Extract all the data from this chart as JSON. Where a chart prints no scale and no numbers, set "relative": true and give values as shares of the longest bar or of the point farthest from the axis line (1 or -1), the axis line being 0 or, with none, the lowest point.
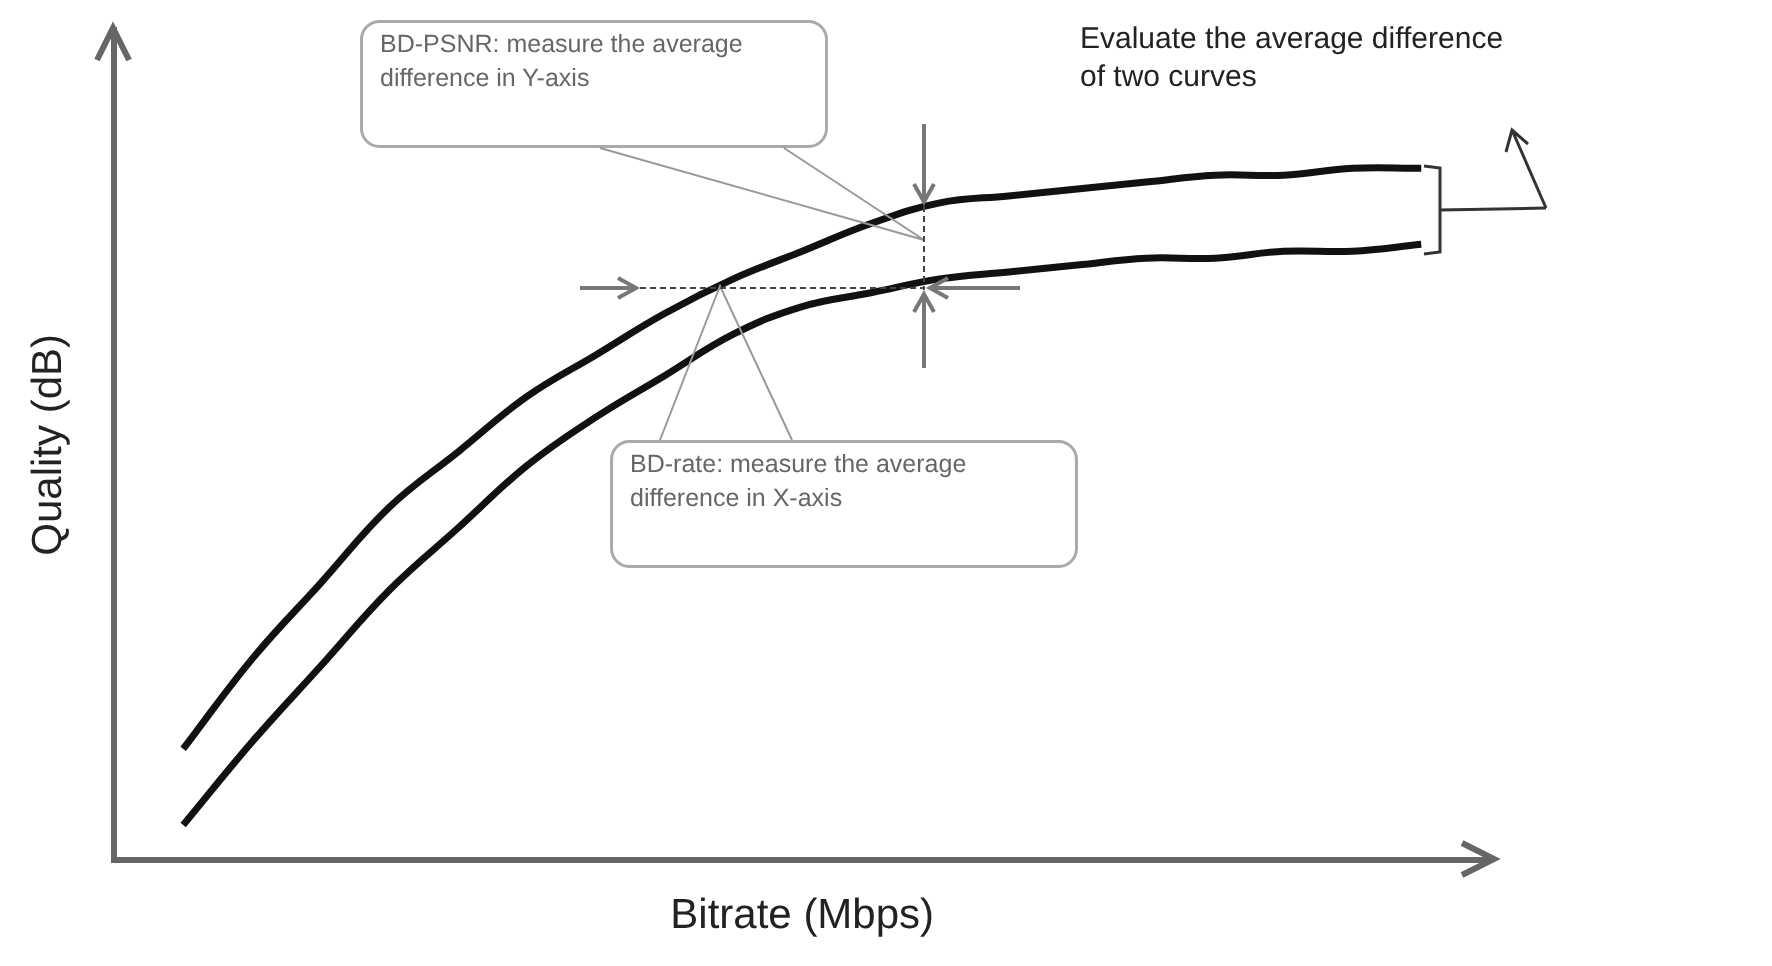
{
  "chart_data": {
    "type": "line",
    "relative": true,
    "xlabel": "Bitrate (Mbps)",
    "ylabel": "Quality (dB)",
    "legend": false,
    "categories": [
      null,
      null,
      null,
      null,
      null,
      null,
      null,
      null,
      null,
      null,
      null,
      null,
      null,
      null,
      null,
      null,
      null,
      null,
      null,
      null,
      null
    ],
    "series": [
      {
        "color": "#111111",
        "values": [
          null,
          0.16,
          0.29,
          0.4,
          0.51,
          0.59,
          0.67,
          0.73,
          0.79,
          0.84,
          0.88,
          0.92,
          0.95,
          0.96,
          0.97,
          0.98,
          0.99,
          0.99,
          1.0,
          1.0,
          null
        ]
      },
      {
        "color": "#111111",
        "values": [
          null,
          0.05,
          0.17,
          0.28,
          0.39,
          0.48,
          0.57,
          0.64,
          0.7,
          0.76,
          0.8,
          0.82,
          0.84,
          0.85,
          0.86,
          0.87,
          0.87,
          0.88,
          0.88,
          0.89,
          null
        ]
      }
    ],
    "annotations": [
      "BD-PSNR: measure the average difference in Y-axis",
      "BD-rate: measure the average difference in X-axis",
      "Evaluate the average difference of two curves"
    ]
  }
}
